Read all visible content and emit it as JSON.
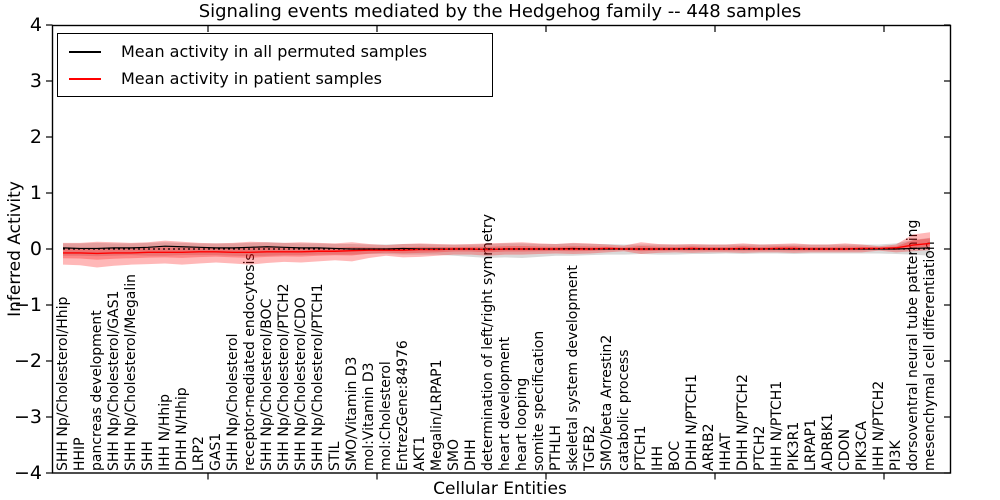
{
  "title": "Signaling events mediated by the Hedgehog family -- 448 samples",
  "axes": {
    "ylabel": "Inferred Activity",
    "xlabel": "Cellular Entities",
    "yticks": [
      "4",
      "3",
      "2",
      "1",
      "0",
      "−1",
      "−2",
      "−3",
      "−4"
    ]
  },
  "legend": {
    "items": [
      {
        "label": "Mean activity in all permuted samples",
        "color": "#000000"
      },
      {
        "label": "Mean activity in patient samples",
        "color": "#ff0000"
      }
    ]
  },
  "colors": {
    "permuted_line": "#000000",
    "patient_line": "#ff0000",
    "permuted_band": "rgba(0,0,0,0.15)",
    "patient_band": "rgba(255,20,20,0.30)",
    "frame": "#000000"
  },
  "chart_data": {
    "type": "line",
    "title": "Signaling events mediated by the Hedgehog family -- 448 samples",
    "xlabel": "Cellular Entities",
    "ylabel": "Inferred Activity",
    "ylim": [
      -4,
      4
    ],
    "grid": false,
    "legend_position": "upper left",
    "zero_reference_line": {
      "style": "dotted",
      "value": 0,
      "color": "#000000"
    },
    "categories": [
      "SHH Np/Cholesterol/Hhip",
      "HHIP",
      "pancreas development",
      "SHH Np/Cholesterol/GAS1",
      "SHH Np/Cholesterol/Megalin",
      "SHH",
      "IHH N/Hhip",
      "DHH N/Hhip",
      "LRP2",
      "GAS1",
      "SHH Np/Cholesterol",
      "receptor-mediated endocytosis",
      "SHH Np/Cholesterol/BOC",
      "SHH Np/Cholesterol/PTCH2",
      "SHH Np/Cholesterol/CDO",
      "SHH Np/Cholesterol/PTCH1",
      "STIL",
      "SMO/Vitamin D3",
      "mol:Vitamin D3",
      "mol:Cholesterol",
      "EntrezGene:84976",
      "AKT1",
      "Megalin/LRPAP1",
      "SMO",
      "DHH",
      "determination of left/right symmetry",
      "heart development",
      "heart looping",
      "somite specification",
      "PTHLH",
      "skeletal system development",
      "TGFB2",
      "SMO/beta Arrestin2",
      "catabolic process",
      "PTCH1",
      "IHH",
      "BOC",
      "DHH N/PTCH1",
      "ARRB2",
      "HHAT",
      "DHH N/PTCH2",
      "PTCH2",
      "IHH N/PTCH1",
      "PIK3R1",
      "LRPAP1",
      "ADRBK1",
      "CDON",
      "PIK3CA",
      "IHH N/PTCH2",
      "PI3K",
      "dorsoventral neural tube patterning",
      "mesenchymal cell differentiation"
    ],
    "series": [
      {
        "name": "Mean activity in all permuted samples",
        "color": "#000000",
        "style": "solid",
        "values": [
          0.02,
          0.01,
          0.01,
          0.02,
          0.02,
          0.03,
          0.05,
          0.04,
          0.03,
          0.02,
          0.02,
          0.03,
          0.04,
          0.03,
          0.02,
          0.02,
          0.01,
          0.0,
          0.0,
          0.0,
          0.01,
          0.0,
          0.0,
          0.0,
          0.0,
          -0.01,
          0.0,
          0.0,
          0.0,
          0.0,
          0.01,
          0.0,
          0.0,
          0.0,
          0.0,
          0.0,
          0.0,
          0.0,
          0.0,
          0.0,
          0.0,
          0.0,
          0.0,
          0.0,
          0.0,
          0.0,
          0.0,
          0.0,
          0.0,
          0.0,
          0.01,
          0.02
        ]
      },
      {
        "name": "Mean activity in patient samples",
        "color": "#ff0000",
        "style": "solid",
        "values": [
          -0.07,
          -0.07,
          -0.08,
          -0.07,
          -0.07,
          -0.06,
          -0.06,
          -0.06,
          -0.05,
          -0.05,
          -0.06,
          -0.06,
          -0.05,
          -0.05,
          -0.05,
          -0.04,
          -0.04,
          -0.03,
          -0.02,
          -0.02,
          -0.02,
          -0.01,
          -0.01,
          0.0,
          0.0,
          -0.01,
          0.0,
          0.0,
          0.0,
          0.0,
          0.0,
          0.0,
          0.01,
          0.0,
          0.0,
          0.0,
          0.0,
          0.01,
          0.0,
          0.0,
          0.01,
          0.0,
          0.01,
          0.01,
          0.0,
          0.0,
          0.0,
          0.01,
          0.01,
          0.02,
          0.07,
          0.1
        ]
      }
    ],
    "bands": [
      {
        "name": "permuted samples spread",
        "color": "rgba(0,0,0,0.15)",
        "upper": [
          0.1,
          0.1,
          0.11,
          0.1,
          0.1,
          0.11,
          0.12,
          0.11,
          0.1,
          0.1,
          0.1,
          0.11,
          0.12,
          0.11,
          0.1,
          0.1,
          0.09,
          0.09,
          0.08,
          0.08,
          0.09,
          0.09,
          0.08,
          0.08,
          0.08,
          0.09,
          0.1,
          0.1,
          0.09,
          0.09,
          0.1,
          0.09,
          0.09,
          0.08,
          0.08,
          0.08,
          0.08,
          0.08,
          0.08,
          0.08,
          0.08,
          0.08,
          0.08,
          0.08,
          0.08,
          0.08,
          0.08,
          0.08,
          0.08,
          0.1,
          0.16,
          0.2
        ],
        "lower": [
          -0.12,
          -0.12,
          -0.13,
          -0.12,
          -0.11,
          -0.12,
          -0.12,
          -0.11,
          -0.11,
          -0.11,
          -0.12,
          -0.13,
          -0.12,
          -0.11,
          -0.11,
          -0.1,
          -0.1,
          -0.1,
          -0.09,
          -0.09,
          -0.1,
          -0.1,
          -0.1,
          -0.12,
          -0.14,
          -0.16,
          -0.15,
          -0.16,
          -0.14,
          -0.12,
          -0.12,
          -0.11,
          -0.1,
          -0.1,
          -0.09,
          -0.1,
          -0.1,
          -0.09,
          -0.09,
          -0.08,
          -0.09,
          -0.08,
          -0.08,
          -0.09,
          -0.08,
          -0.08,
          -0.08,
          -0.08,
          -0.08,
          -0.09,
          -0.1,
          -0.12
        ]
      },
      {
        "name": "patient samples spread",
        "color": "rgba(255,20,20,0.30)",
        "inner_band_scale": 0.45,
        "upper": [
          0.11,
          0.11,
          0.13,
          0.12,
          0.11,
          0.12,
          0.15,
          0.13,
          0.11,
          0.1,
          0.11,
          0.13,
          0.12,
          0.11,
          0.12,
          0.11,
          0.1,
          0.12,
          0.09,
          0.07,
          0.09,
          0.1,
          0.09,
          0.08,
          0.09,
          0.1,
          0.11,
          0.12,
          0.1,
          0.09,
          0.11,
          0.1,
          0.08,
          0.06,
          0.12,
          0.09,
          0.08,
          0.09,
          0.08,
          0.08,
          0.1,
          0.08,
          0.09,
          0.1,
          0.08,
          0.08,
          0.1,
          0.08,
          0.05,
          0.08,
          0.26,
          0.3
        ],
        "lower": [
          -0.28,
          -0.29,
          -0.33,
          -0.3,
          -0.28,
          -0.27,
          -0.26,
          -0.28,
          -0.26,
          -0.24,
          -0.26,
          -0.28,
          -0.25,
          -0.23,
          -0.24,
          -0.22,
          -0.2,
          -0.22,
          -0.16,
          -0.12,
          -0.15,
          -0.14,
          -0.12,
          -0.1,
          -0.1,
          -0.12,
          -0.1,
          -0.1,
          -0.09,
          -0.08,
          -0.09,
          -0.08,
          -0.06,
          -0.04,
          -0.09,
          -0.07,
          -0.06,
          -0.07,
          -0.06,
          -0.06,
          -0.07,
          -0.06,
          -0.06,
          -0.07,
          -0.06,
          -0.06,
          -0.06,
          -0.06,
          -0.03,
          -0.06,
          -0.04,
          -0.02
        ]
      }
    ]
  }
}
